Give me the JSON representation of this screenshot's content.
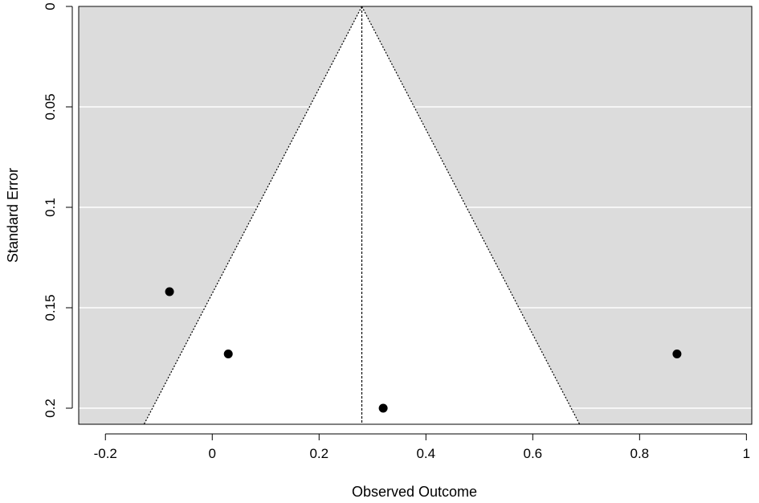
{
  "chart_data": {
    "type": "scatter",
    "subtype": "funnel-plot",
    "title": "",
    "xlabel": "Observed Outcome",
    "ylabel": "Standard Error",
    "xlim": [
      -0.25,
      1.01
    ],
    "ylim": [
      0,
      0.208
    ],
    "y_reversed": true,
    "xticks": [
      -0.2,
      0,
      0.2,
      0.4,
      0.6,
      0.8,
      1
    ],
    "xtick_labels": [
      "-0.2",
      "0",
      "0.2",
      "0.4",
      "0.6",
      "0.8",
      "1"
    ],
    "yticks": [
      0,
      0.05,
      0.1,
      0.15,
      0.2
    ],
    "ytick_labels": [
      "0",
      "0.05",
      "0.1",
      "0.15",
      "0.2"
    ],
    "grid": "horizontal",
    "background_color": "#dcdcdc",
    "funnel_fill": "#ffffff",
    "center_estimate": 0.28,
    "funnel_multiplier": 1.96,
    "points": [
      {
        "x": -0.08,
        "y": 0.142
      },
      {
        "x": 0.03,
        "y": 0.173
      },
      {
        "x": 0.32,
        "y": 0.2
      },
      {
        "x": 0.87,
        "y": 0.173
      }
    ]
  }
}
